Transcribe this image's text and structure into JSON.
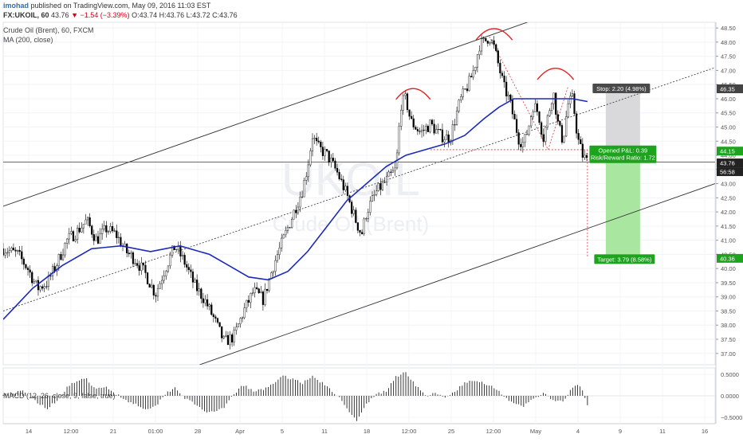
{
  "header": {
    "author": "imohad",
    "published_text": "published on TradingView.com, May 09, 2016 11:03 EST",
    "symbol": "FX:UKOIL, 60",
    "last": "43.76",
    "change": "−1.54 (−3.39%)",
    "ohlc": "O:43.74 H:43.76 L:43.72 C:43.76"
  },
  "legend": {
    "instrument": "Crude Oil (Brent), 60, FXCM",
    "ma": "MA (200, close)",
    "macd": "MACD (12, 26, close, 9, false, true)"
  },
  "watermark": {
    "symbol": "UKOIL",
    "name": "Crude Oil (Brent)"
  },
  "chart_data": {
    "type": "candlestick",
    "price_axis": {
      "ylim": [
        36.6,
        48.7
      ],
      "ticks": [
        "48.50",
        "48.00",
        "47.50",
        "47.00",
        "46.50",
        "46.00",
        "45.50",
        "45.00",
        "44.50",
        "44.00",
        "43.50",
        "43.00",
        "42.50",
        "42.00",
        "41.50",
        "41.00",
        "40.50",
        "40.00",
        "39.50",
        "39.00",
        "38.50",
        "38.00",
        "37.50",
        "37.00"
      ]
    },
    "time_axis": {
      "labels": [
        "14",
        "12:00",
        "21",
        "01:00",
        "28",
        "Apr",
        "5",
        "11",
        "18",
        "12:00",
        "25",
        "12:00",
        "May",
        "4",
        "9",
        "11",
        "16"
      ]
    },
    "close_path": [
      [
        0,
        40.7
      ],
      [
        3,
        40.5
      ],
      [
        5,
        40.0
      ],
      [
        7,
        39.3
      ],
      [
        9,
        39.5
      ],
      [
        11,
        40.2
      ],
      [
        13,
        41.0
      ],
      [
        15,
        41.3
      ],
      [
        17,
        41.7
      ],
      [
        19,
        41.0
      ],
      [
        21,
        41.4
      ],
      [
        23,
        41.2
      ],
      [
        25,
        40.6
      ],
      [
        27,
        40.3
      ],
      [
        29,
        39.8
      ],
      [
        31,
        39.1
      ],
      [
        33,
        40.0
      ],
      [
        35,
        40.8
      ],
      [
        37,
        40.2
      ],
      [
        39,
        39.4
      ],
      [
        41,
        38.9
      ],
      [
        43,
        38.2
      ],
      [
        45,
        37.4
      ],
      [
        47,
        37.6
      ],
      [
        49,
        38.5
      ],
      [
        51,
        39.2
      ],
      [
        53,
        38.9
      ],
      [
        55,
        40.1
      ],
      [
        57,
        41.0
      ],
      [
        59,
        41.9
      ],
      [
        61,
        42.8
      ],
      [
        62,
        43.6
      ],
      [
        63,
        44.7
      ],
      [
        64,
        44.3
      ],
      [
        66,
        44.0
      ],
      [
        68,
        43.4
      ],
      [
        70,
        42.6
      ],
      [
        72,
        41.6
      ],
      [
        73,
        41.2
      ],
      [
        74,
        42.0
      ],
      [
        76,
        42.7
      ],
      [
        78,
        43.1
      ],
      [
        80,
        43.5
      ],
      [
        81,
        45.8
      ],
      [
        82,
        46.0
      ],
      [
        83,
        45.2
      ],
      [
        85,
        44.8
      ],
      [
        87,
        45.1
      ],
      [
        89,
        44.7
      ],
      [
        91,
        44.6
      ],
      [
        93,
        45.9
      ],
      [
        95,
        46.6
      ],
      [
        96,
        47.1
      ],
      [
        97,
        47.9
      ],
      [
        98,
        48.0
      ],
      [
        99,
        48.2
      ],
      [
        100,
        47.8
      ],
      [
        101,
        47.1
      ],
      [
        102,
        46.4
      ],
      [
        103,
        46.0
      ],
      [
        104,
        45.3
      ],
      [
        105,
        44.6
      ],
      [
        106,
        44.4
      ],
      [
        107,
        45.0
      ],
      [
        108,
        45.8
      ],
      [
        109,
        45.5
      ],
      [
        110,
        44.6
      ],
      [
        111,
        45.4
      ],
      [
        112,
        46.3
      ],
      [
        113,
        45.1
      ],
      [
        114,
        44.5
      ],
      [
        115,
        45.8
      ],
      [
        116,
        46.0
      ],
      [
        117,
        44.6
      ],
      [
        118,
        44.0
      ],
      [
        119,
        43.76
      ]
    ],
    "ma200": [
      [
        0,
        38.2
      ],
      [
        6,
        39.3
      ],
      [
        12,
        40.1
      ],
      [
        18,
        40.7
      ],
      [
        24,
        40.8
      ],
      [
        30,
        40.6
      ],
      [
        36,
        40.8
      ],
      [
        42,
        40.5
      ],
      [
        46,
        40.1
      ],
      [
        50,
        39.7
      ],
      [
        54,
        39.6
      ],
      [
        58,
        39.9
      ],
      [
        62,
        40.6
      ],
      [
        66,
        41.5
      ],
      [
        70,
        42.4
      ],
      [
        74,
        43.0
      ],
      [
        78,
        43.6
      ],
      [
        82,
        44.0
      ],
      [
        86,
        44.2
      ],
      [
        90,
        44.4
      ],
      [
        94,
        44.7
      ],
      [
        98,
        45.3
      ],
      [
        101,
        45.7
      ],
      [
        104,
        46.0
      ],
      [
        108,
        46.0
      ],
      [
        112,
        46.0
      ],
      [
        116,
        46.0
      ],
      [
        119,
        45.9
      ]
    ],
    "lines": {
      "upper_channel": [
        [
          0,
          42.2
        ],
        [
          110,
          48.9
        ]
      ],
      "mid_channel": [
        [
          0,
          38.5
        ],
        [
          145,
          47.1
        ]
      ],
      "lower_channel": [
        [
          40,
          36.6
        ],
        [
          145,
          43.0
        ]
      ],
      "neckline": [
        [
          87,
          44.2
        ],
        [
          119,
          44.2
        ]
      ],
      "target_drop": [
        [
          119,
          44.2
        ],
        [
          119,
          40.4
        ]
      ],
      "head_trend_left": [
        [
          99,
          48.2
        ],
        [
          111,
          44.2
        ]
      ],
      "head_trend_right": [
        [
          111,
          44.2
        ],
        [
          115,
          46.4
        ]
      ],
      "last_price": [
        [
          -1,
          43.76
        ],
        [
          145,
          43.76
        ]
      ]
    },
    "arcs": [
      {
        "name": "left-shoulder",
        "cx": 83.5,
        "y": 46.2,
        "rx": 3.5
      },
      {
        "name": "head",
        "cx": 100,
        "y": 48.3,
        "rx": 3.7
      },
      {
        "name": "right-shoulder",
        "cx": 112.5,
        "y": 46.9,
        "rx": 3.7
      }
    ],
    "position": {
      "entry": 44.15,
      "stop": 46.35,
      "target": 40.36,
      "stop_label": "Stop: 2.20 (4.98%)",
      "pnl_label": "Opened P&L: 0.39",
      "rr_label": "Risk/Reward Ratio: 1.72",
      "target_label": "Target: 3.79 (8.58%)"
    },
    "price_flags": {
      "stop": "46.35",
      "entry": "44.15",
      "last": "43.76",
      "countdown": "56:58",
      "target": "40.36"
    },
    "macd_axis": {
      "ylim": [
        -0.65,
        0.65
      ],
      "ticks": [
        "0.5000",
        "0.0000",
        "−0.5000"
      ]
    },
    "macd_path": [
      [
        0,
        0.05
      ],
      [
        4,
        0.1
      ],
      [
        7,
        -0.15
      ],
      [
        9,
        -0.3
      ],
      [
        11,
        -0.1
      ],
      [
        13,
        0.2
      ],
      [
        15,
        0.35
      ],
      [
        17,
        0.38
      ],
      [
        19,
        0.15
      ],
      [
        21,
        0.2
      ],
      [
        23,
        0.05
      ],
      [
        25,
        -0.1
      ],
      [
        27,
        -0.2
      ],
      [
        29,
        -0.3
      ],
      [
        31,
        -0.25
      ],
      [
        33,
        0.05
      ],
      [
        35,
        0.2
      ],
      [
        37,
        -0.05
      ],
      [
        39,
        -0.2
      ],
      [
        41,
        -0.35
      ],
      [
        43,
        -0.4
      ],
      [
        45,
        -0.28
      ],
      [
        47,
        0.05
      ],
      [
        49,
        0.25
      ],
      [
        51,
        0.1
      ],
      [
        53,
        0.15
      ],
      [
        55,
        0.3
      ],
      [
        57,
        0.45
      ],
      [
        59,
        0.4
      ],
      [
        61,
        0.3
      ],
      [
        63,
        0.45
      ],
      [
        65,
        0.3
      ],
      [
        67,
        0.1
      ],
      [
        69,
        -0.1
      ],
      [
        71,
        -0.45
      ],
      [
        72,
        -0.6
      ],
      [
        74,
        -0.2
      ],
      [
        76,
        0.05
      ],
      [
        78,
        0.1
      ],
      [
        80,
        0.45
      ],
      [
        82,
        0.55
      ],
      [
        84,
        0.25
      ],
      [
        86,
        0.0
      ],
      [
        88,
        0.05
      ],
      [
        90,
        -0.05
      ],
      [
        92,
        0.1
      ],
      [
        94,
        0.3
      ],
      [
        96,
        0.35
      ],
      [
        98,
        0.3
      ],
      [
        100,
        0.2
      ],
      [
        102,
        0.0
      ],
      [
        104,
        -0.2
      ],
      [
        106,
        -0.25
      ],
      [
        108,
        -0.05
      ],
      [
        110,
        0.05
      ],
      [
        112,
        -0.1
      ],
      [
        114,
        -0.15
      ],
      [
        116,
        0.2
      ],
      [
        117,
        0.25
      ],
      [
        118,
        0.15
      ],
      [
        119,
        -0.25
      ]
    ]
  }
}
